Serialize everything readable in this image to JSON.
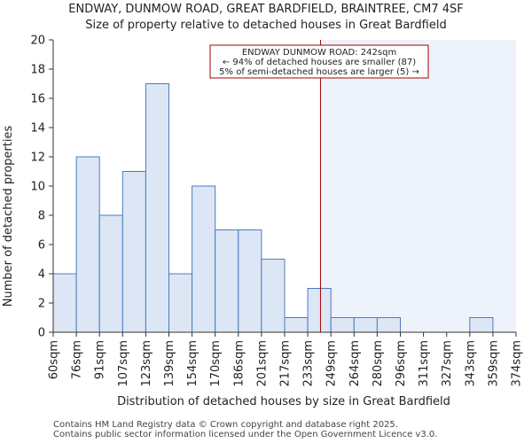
{
  "chart_data": {
    "type": "histogram",
    "title": "ENDWAY, DUNMOW ROAD, GREAT BARDFIELD, BRAINTREE, CM7 4SF",
    "subtitle": "Size of property relative to detached houses in Great Bardfield",
    "xlabel": "Distribution of detached houses by size in Great Bardfield",
    "ylabel": "Number of detached properties",
    "bin_labels": [
      "60sqm",
      "76sqm",
      "91sqm",
      "107sqm",
      "123sqm",
      "139sqm",
      "154sqm",
      "170sqm",
      "186sqm",
      "201sqm",
      "217sqm",
      "233sqm",
      "249sqm",
      "264sqm",
      "280sqm",
      "296sqm",
      "311sqm",
      "327sqm",
      "343sqm",
      "359sqm",
      "374sqm"
    ],
    "values": [
      4,
      12,
      8,
      11,
      17,
      4,
      10,
      7,
      7,
      5,
      1,
      3,
      1,
      1,
      1,
      0,
      0,
      0,
      1,
      0
    ],
    "ylim": [
      0,
      20
    ],
    "yticks": [
      0,
      2,
      4,
      6,
      8,
      10,
      12,
      14,
      16,
      18,
      20
    ],
    "marker": {
      "value_sqm": 242,
      "bin_position": 11.55,
      "label_line1": "ENDWAY DUNMOW ROAD: 242sqm",
      "label_line2": "← 94% of detached houses are smaller (87)",
      "label_line3": "5% of semi-detached houses are larger (5) →"
    },
    "grid": false,
    "colors": {
      "bar_fill": "#dce6f5",
      "bar_stroke": "#4a7cc0",
      "marker_line": "#aa0000",
      "shaded_region": "#eef2fb",
      "axis": "#333333"
    }
  },
  "footer": {
    "line1": "Contains HM Land Registry data © Crown copyright and database right 2025.",
    "line2": "Contains public sector information licensed under the Open Government Licence v3.0."
  }
}
